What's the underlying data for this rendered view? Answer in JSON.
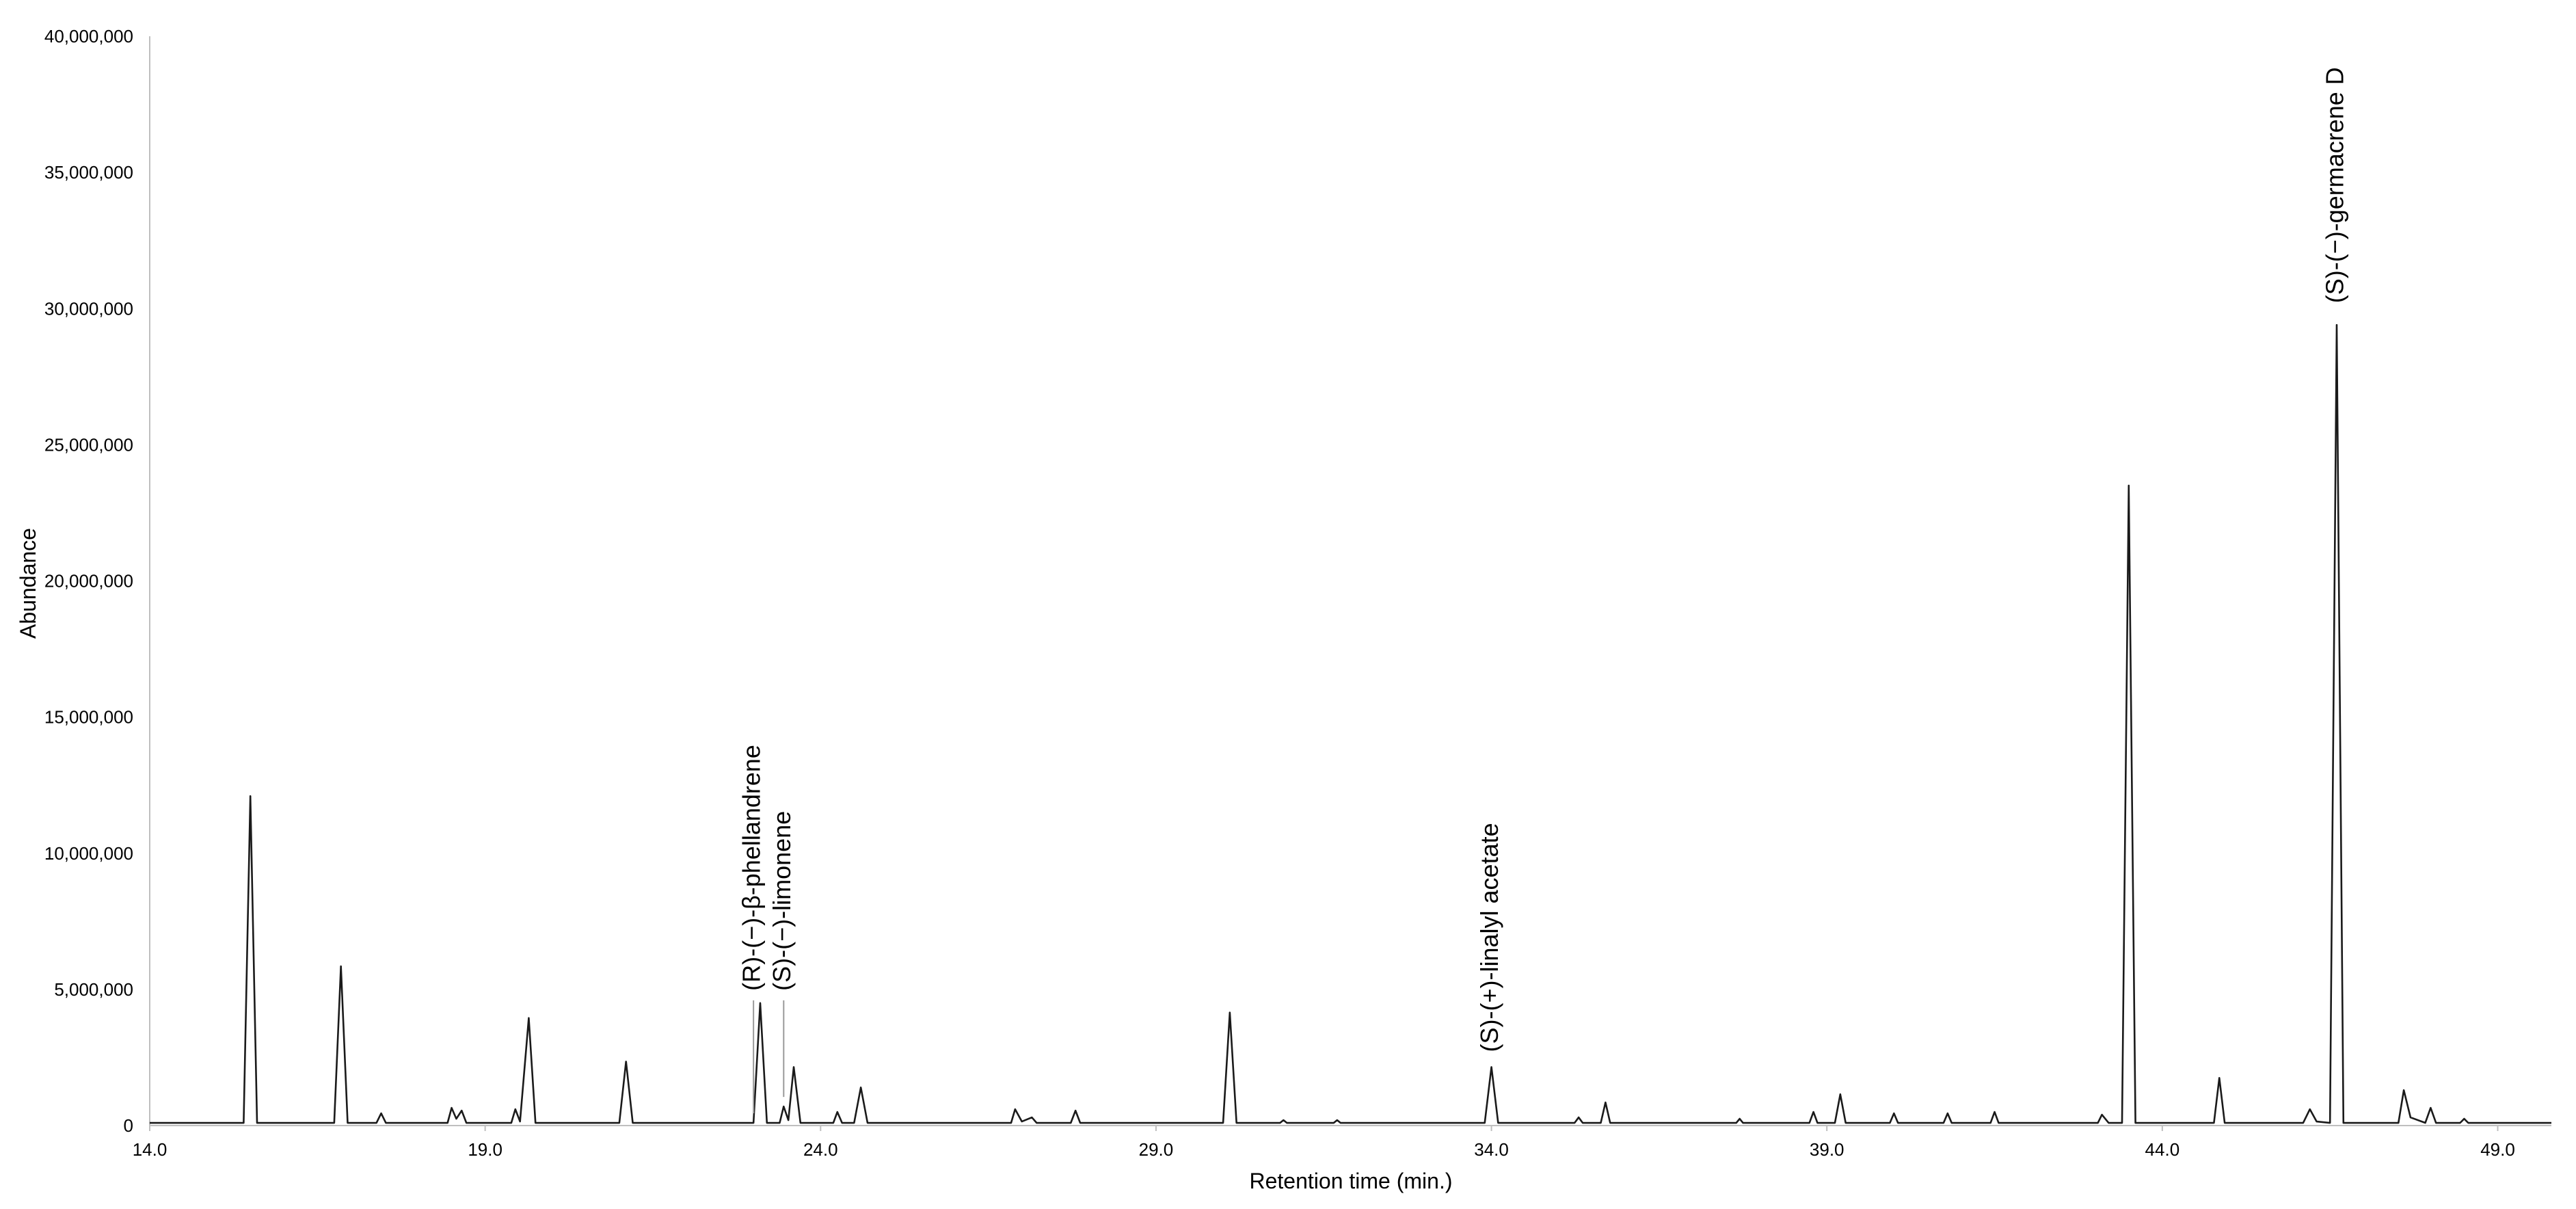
{
  "chart_data": {
    "type": "line",
    "x_label": "Retention time (min.)",
    "y_label": "Abundance",
    "xlim": [
      14,
      49.8
    ],
    "ylim": [
      0,
      40000000
    ],
    "xticks": [
      {
        "value": 14,
        "label": "14.0"
      },
      {
        "value": 19,
        "label": "19.0"
      },
      {
        "value": 24,
        "label": "24.0"
      },
      {
        "value": 29,
        "label": "29.0"
      },
      {
        "value": 34,
        "label": "34.0"
      },
      {
        "value": 39,
        "label": "39.0"
      },
      {
        "value": 44,
        "label": "44.0"
      },
      {
        "value": 49,
        "label": "49.0"
      }
    ],
    "yticks": [
      {
        "value": 0,
        "label": "0"
      },
      {
        "value": 5000000,
        "label": "5,000,000"
      },
      {
        "value": 10000000,
        "label": "10,000,000"
      },
      {
        "value": 15000000,
        "label": "15,000,000"
      },
      {
        "value": 20000000,
        "label": "20,000,000"
      },
      {
        "value": 25000000,
        "label": "25,000,000"
      },
      {
        "value": 30000000,
        "label": "30,000,000"
      },
      {
        "value": 35000000,
        "label": "35,000,000"
      },
      {
        "value": 40000000,
        "label": "40,000,000"
      }
    ],
    "grid": false,
    "series": [
      {
        "color": "#1a1a1a",
        "x": [
          14.0,
          15.4,
          15.5,
          15.6,
          16.75,
          16.85,
          16.95,
          17.38,
          17.45,
          17.52,
          18.44,
          18.5,
          18.57,
          18.65,
          18.72,
          19.39,
          19.45,
          19.52,
          19.65,
          19.75,
          21.0,
          21.1,
          21.2,
          23.0,
          23.1,
          23.2,
          23.39,
          23.45,
          23.52,
          23.6,
          23.7,
          24.19,
          24.25,
          24.32,
          24.5,
          24.6,
          24.7,
          26.84,
          26.9,
          27.0,
          27.15,
          27.22,
          27.73,
          27.8,
          27.87,
          30.0,
          30.1,
          30.2,
          30.85,
          30.9,
          30.95,
          31.65,
          31.7,
          31.75,
          33.9,
          34.0,
          34.1,
          35.24,
          35.3,
          35.36,
          35.63,
          35.7,
          35.77,
          37.65,
          37.7,
          37.75,
          38.74,
          38.8,
          38.86,
          39.12,
          39.2,
          39.28,
          39.94,
          40.0,
          40.06,
          40.74,
          40.8,
          40.86,
          41.44,
          41.5,
          41.56,
          43.04,
          43.1,
          43.2,
          43.4,
          43.5,
          43.6,
          44.77,
          44.85,
          44.93,
          46.1,
          46.2,
          46.3,
          46.5,
          46.6,
          46.7,
          47.52,
          47.6,
          47.7,
          47.92,
          48.0,
          48.08,
          48.44,
          48.5,
          48.56,
          49.8
        ],
        "values": [
          100000,
          100000,
          12100000,
          100000,
          100000,
          5850000,
          100000,
          100000,
          450000,
          100000,
          100000,
          650000,
          250000,
          550000,
          100000,
          100000,
          600000,
          150000,
          3950000,
          100000,
          100000,
          2350000,
          100000,
          100000,
          4500000,
          100000,
          100000,
          700000,
          200000,
          2150000,
          100000,
          100000,
          500000,
          100000,
          100000,
          1400000,
          100000,
          100000,
          600000,
          150000,
          300000,
          100000,
          100000,
          550000,
          100000,
          100000,
          4150000,
          100000,
          100000,
          200000,
          100000,
          100000,
          200000,
          100000,
          100000,
          2150000,
          100000,
          100000,
          300000,
          100000,
          100000,
          850000,
          100000,
          100000,
          250000,
          100000,
          100000,
          500000,
          100000,
          100000,
          1150000,
          100000,
          100000,
          450000,
          100000,
          100000,
          450000,
          100000,
          100000,
          500000,
          100000,
          100000,
          400000,
          100000,
          100000,
          23500000,
          100000,
          100000,
          1750000,
          100000,
          100000,
          600000,
          150000,
          100000,
          29400000,
          100000,
          100000,
          1300000,
          300000,
          100000,
          650000,
          100000,
          100000,
          250000,
          100000,
          100000
        ]
      }
    ],
    "annotations": [
      {
        "text": "(R)-(−)-β-phellandrene",
        "x": 23.0,
        "y": 4950000
      },
      {
        "text": "(S)-(−)-limonene",
        "x": 23.45,
        "y": 4950000
      },
      {
        "text": "(S)-(+)-linalyl acetate",
        "x": 34.0,
        "y": 2700000
      },
      {
        "text": "(S)-(−)-germacrene D",
        "x": 46.6,
        "y": 30200000
      }
    ]
  }
}
